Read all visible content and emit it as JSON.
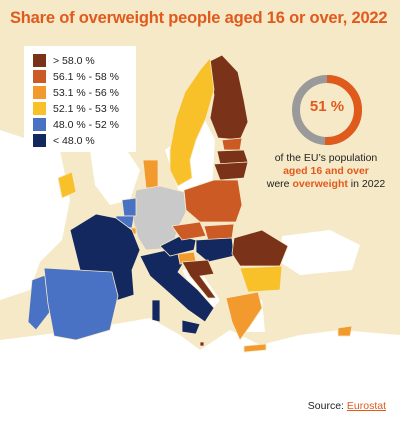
{
  "title": "Share of overweight people aged 16 or over, 2022",
  "legend": [
    {
      "label": "> 58.0 %",
      "color": "#7a3318"
    },
    {
      "label": "56.1 % - 58 %",
      "color": "#cc5a25"
    },
    {
      "label": "53.1 % - 56 %",
      "color": "#f29a2e"
    },
    {
      "label": "52.1 % - 53 %",
      "color": "#f8c12a"
    },
    {
      "label": "48.0 % - 52 %",
      "color": "#4a72c4"
    },
    {
      "label": "< 48.0 %",
      "color": "#13285f"
    }
  ],
  "no_data_color": "#c9c9c9",
  "background_land_color": "#f6e9c8",
  "sea_color": "#ffffff",
  "donut": {
    "value": 51,
    "label": "51 %",
    "fill_color": "#e05a1c",
    "rest_color": "#9a9a9a"
  },
  "callout": {
    "line1": "of the EU’s population",
    "line2": "aged 16 and over",
    "line3_pre": "were",
    "line3_hl": "overweight",
    "line3_post": "in 2022"
  },
  "source": {
    "label": "Source:",
    "link": "Eurostat"
  },
  "regions": [
    {
      "name": "finland",
      "class": "> 58.0 %"
    },
    {
      "name": "sweden",
      "class": "52.1 % - 53 %"
    },
    {
      "name": "estonia",
      "class": "56.1 % - 58 %"
    },
    {
      "name": "latvia",
      "class": "> 58.0 %"
    },
    {
      "name": "lithuania",
      "class": "> 58.0 %"
    },
    {
      "name": "poland",
      "class": "56.1 % - 58 %"
    },
    {
      "name": "denmark",
      "class": "53.1 % - 56 %"
    },
    {
      "name": "germany",
      "class": "no data"
    },
    {
      "name": "netherlands",
      "class": "48.0 % - 52 %"
    },
    {
      "name": "belgium",
      "class": "48.0 % - 52 %"
    },
    {
      "name": "luxembourg",
      "class": "53.1 % - 56 %"
    },
    {
      "name": "france",
      "class": "< 48.0 %"
    },
    {
      "name": "ireland",
      "class": "52.1 % - 53 %"
    },
    {
      "name": "portugal",
      "class": "48.0 % - 52 %"
    },
    {
      "name": "spain",
      "class": "48.0 % - 52 %"
    },
    {
      "name": "italy",
      "class": "< 48.0 %"
    },
    {
      "name": "austria",
      "class": "< 48.0 %"
    },
    {
      "name": "czechia",
      "class": "56.1 % - 58 %"
    },
    {
      "name": "slovakia",
      "class": "56.1 % - 58 %"
    },
    {
      "name": "hungary",
      "class": "< 48.0 %"
    },
    {
      "name": "slovenia",
      "class": "53.1 % - 56 %"
    },
    {
      "name": "croatia",
      "class": "> 58.0 %"
    },
    {
      "name": "romania",
      "class": "> 58.0 %"
    },
    {
      "name": "bulgaria",
      "class": "52.1 % - 53 %"
    },
    {
      "name": "greece",
      "class": "53.1 % - 56 %"
    },
    {
      "name": "cyprus",
      "class": "53.1 % - 56 %"
    },
    {
      "name": "malta",
      "class": "> 58.0 %"
    }
  ]
}
